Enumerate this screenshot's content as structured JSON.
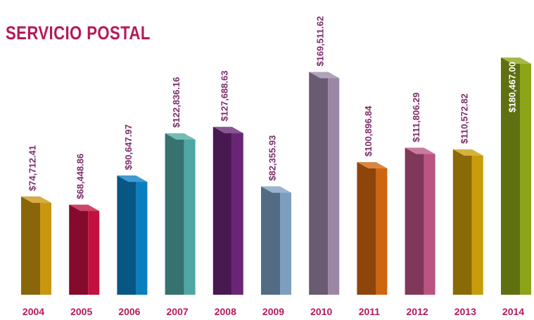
{
  "chart_data": {
    "type": "bar",
    "title": "SERVICIO POSTAL",
    "categories": [
      "2004",
      "2005",
      "2006",
      "2007",
      "2008",
      "2009",
      "2010",
      "2011",
      "2012",
      "2013",
      "2014"
    ],
    "values": [
      74712.41,
      68448.86,
      90647.97,
      122836.16,
      127688.63,
      82355.93,
      169511.62,
      100896.84,
      111806.29,
      110572.82,
      180467.0
    ],
    "data_labels": [
      "$74,712.41",
      "$68,448.86",
      "$90,647.97",
      "$122,836.16",
      "$127,688.63",
      "$82,355.93",
      "$169,511.62",
      "$100,896.84",
      "$111,806.29",
      "$110,572.82",
      "$180,467.00"
    ],
    "colors": [
      "#c9960f",
      "#c2103f",
      "#0a7fc0",
      "#4fa7a3",
      "#6a2576",
      "#7c9fc0",
      "#9b86a6",
      "#d0650f",
      "#bb5383",
      "#c99c0a",
      "#8ca418"
    ],
    "xlabel": "",
    "ylabel": "",
    "grid": false,
    "legend": "none"
  },
  "style": {
    "title_color": "#b5195c",
    "label_color": "#7c2e6b",
    "tick_color": "#b5195c",
    "inside_label_color": "#ffffff"
  }
}
